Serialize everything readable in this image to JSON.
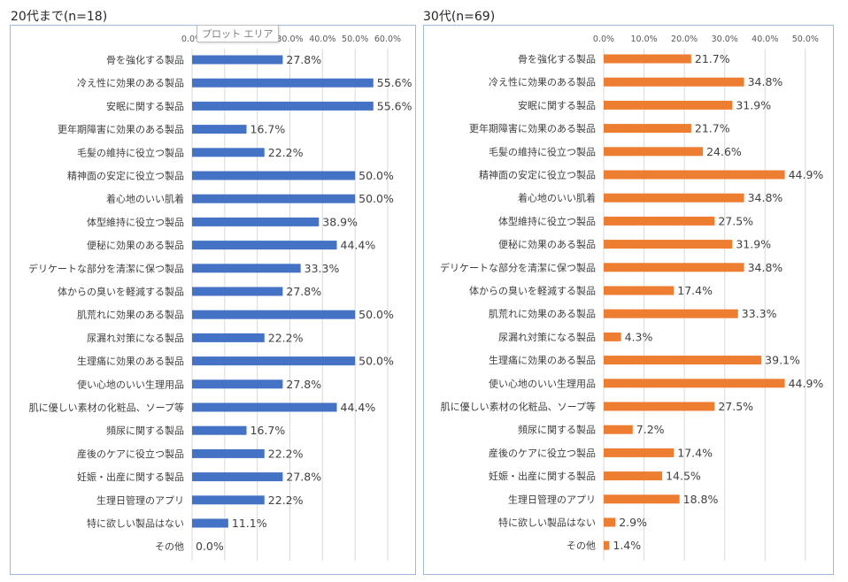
{
  "chart_data": [
    {
      "type": "bar",
      "orientation": "horizontal",
      "title": "20代まで(n=18)",
      "categories": [
        "骨を強化する製品",
        "冷え性に効果のある製品",
        "安眠に関する製品",
        "更年期障害に効果のある製品",
        "毛髪の維持に役立つ製品",
        "精神面の安定に役立つ製品",
        "着心地のいい肌着",
        "体型維持に役立つ製品",
        "便秘に効果のある製品",
        "デリケートな部分を清潔に保つ製品",
        "体からの臭いを軽減する製品",
        "肌荒れに効果のある製品",
        "尿漏れ対策になる製品",
        "生理痛に効果のある製品",
        "使い心地のいい生理用品",
        "肌に優しい素材の化粧品、ソープ等",
        "頻尿に関する製品",
        "産後のケアに役立つ製品",
        "妊娠・出産に関する製品",
        "生理日管理のアプリ",
        "特に欲しい製品はない",
        "その他"
      ],
      "values": [
        27.8,
        55.6,
        55.6,
        16.7,
        22.2,
        50.0,
        50.0,
        38.9,
        44.4,
        33.3,
        27.8,
        50.0,
        22.2,
        50.0,
        27.8,
        44.4,
        16.7,
        22.2,
        27.8,
        22.2,
        11.1,
        0.0
      ],
      "value_labels": [
        "27.8%",
        "55.6%",
        "55.6%",
        "16.7%",
        "22.2%",
        "50.0%",
        "50.0%",
        "38.9%",
        "44.4%",
        "33.3%",
        "27.8%",
        "50.0%",
        "22.2%",
        "50.0%",
        "27.8%",
        "44.4%",
        "16.7%",
        "22.2%",
        "27.8%",
        "22.2%",
        "11.1%",
        "0.0%"
      ],
      "ticks": [
        0,
        10,
        20,
        30,
        40,
        50,
        60
      ],
      "tick_labels": [
        "0.0%",
        "10.0%",
        "20.0%",
        "30.0%",
        "40.0%",
        "50.0%",
        "60.0%"
      ],
      "xlim": [
        0,
        60
      ],
      "grid": true,
      "color": "#4472c4"
    },
    {
      "type": "bar",
      "orientation": "horizontal",
      "title": "30代(n=69)",
      "categories": [
        "骨を強化する製品",
        "冷え性に効果のある製品",
        "安眠に関する製品",
        "更年期障害に効果のある製品",
        "毛髪の維持に役立つ製品",
        "精神面の安定に役立つ製品",
        "着心地のいい肌着",
        "体型維持に役立つ製品",
        "便秘に効果のある製品",
        "デリケートな部分を清潔に保つ製品",
        "体からの臭いを軽減する製品",
        "肌荒れに効果のある製品",
        "尿漏れ対策になる製品",
        "生理痛に効果のある製品",
        "使い心地のいい生理用品",
        "肌に優しい素材の化粧品、ソープ等",
        "頻尿に関する製品",
        "産後のケアに役立つ製品",
        "妊娠・出産に関する製品",
        "生理日管理のアプリ",
        "特に欲しい製品はない",
        "その他"
      ],
      "values": [
        21.7,
        34.8,
        31.9,
        21.7,
        24.6,
        44.9,
        34.8,
        27.5,
        31.9,
        34.8,
        17.4,
        33.3,
        4.3,
        39.1,
        44.9,
        27.5,
        7.2,
        17.4,
        14.5,
        18.8,
        2.9,
        1.4
      ],
      "value_labels": [
        "21.7%",
        "34.8%",
        "31.9%",
        "21.7%",
        "24.6%",
        "44.9%",
        "34.8%",
        "27.5%",
        "31.9%",
        "34.8%",
        "17.4%",
        "33.3%",
        "4.3%",
        "39.1%",
        "44.9%",
        "27.5%",
        "7.2%",
        "17.4%",
        "14.5%",
        "18.8%",
        "2.9%",
        "1.4%"
      ],
      "ticks": [
        0,
        10,
        20,
        30,
        40,
        50
      ],
      "tick_labels": [
        "0.0%",
        "10.0%",
        "20.0%",
        "30.0%",
        "40.0%",
        "50.0%"
      ],
      "xlim": [
        0,
        55
      ],
      "grid": true,
      "color": "#ed7d31"
    }
  ],
  "tooltip": {
    "label": "プロット エリア"
  }
}
